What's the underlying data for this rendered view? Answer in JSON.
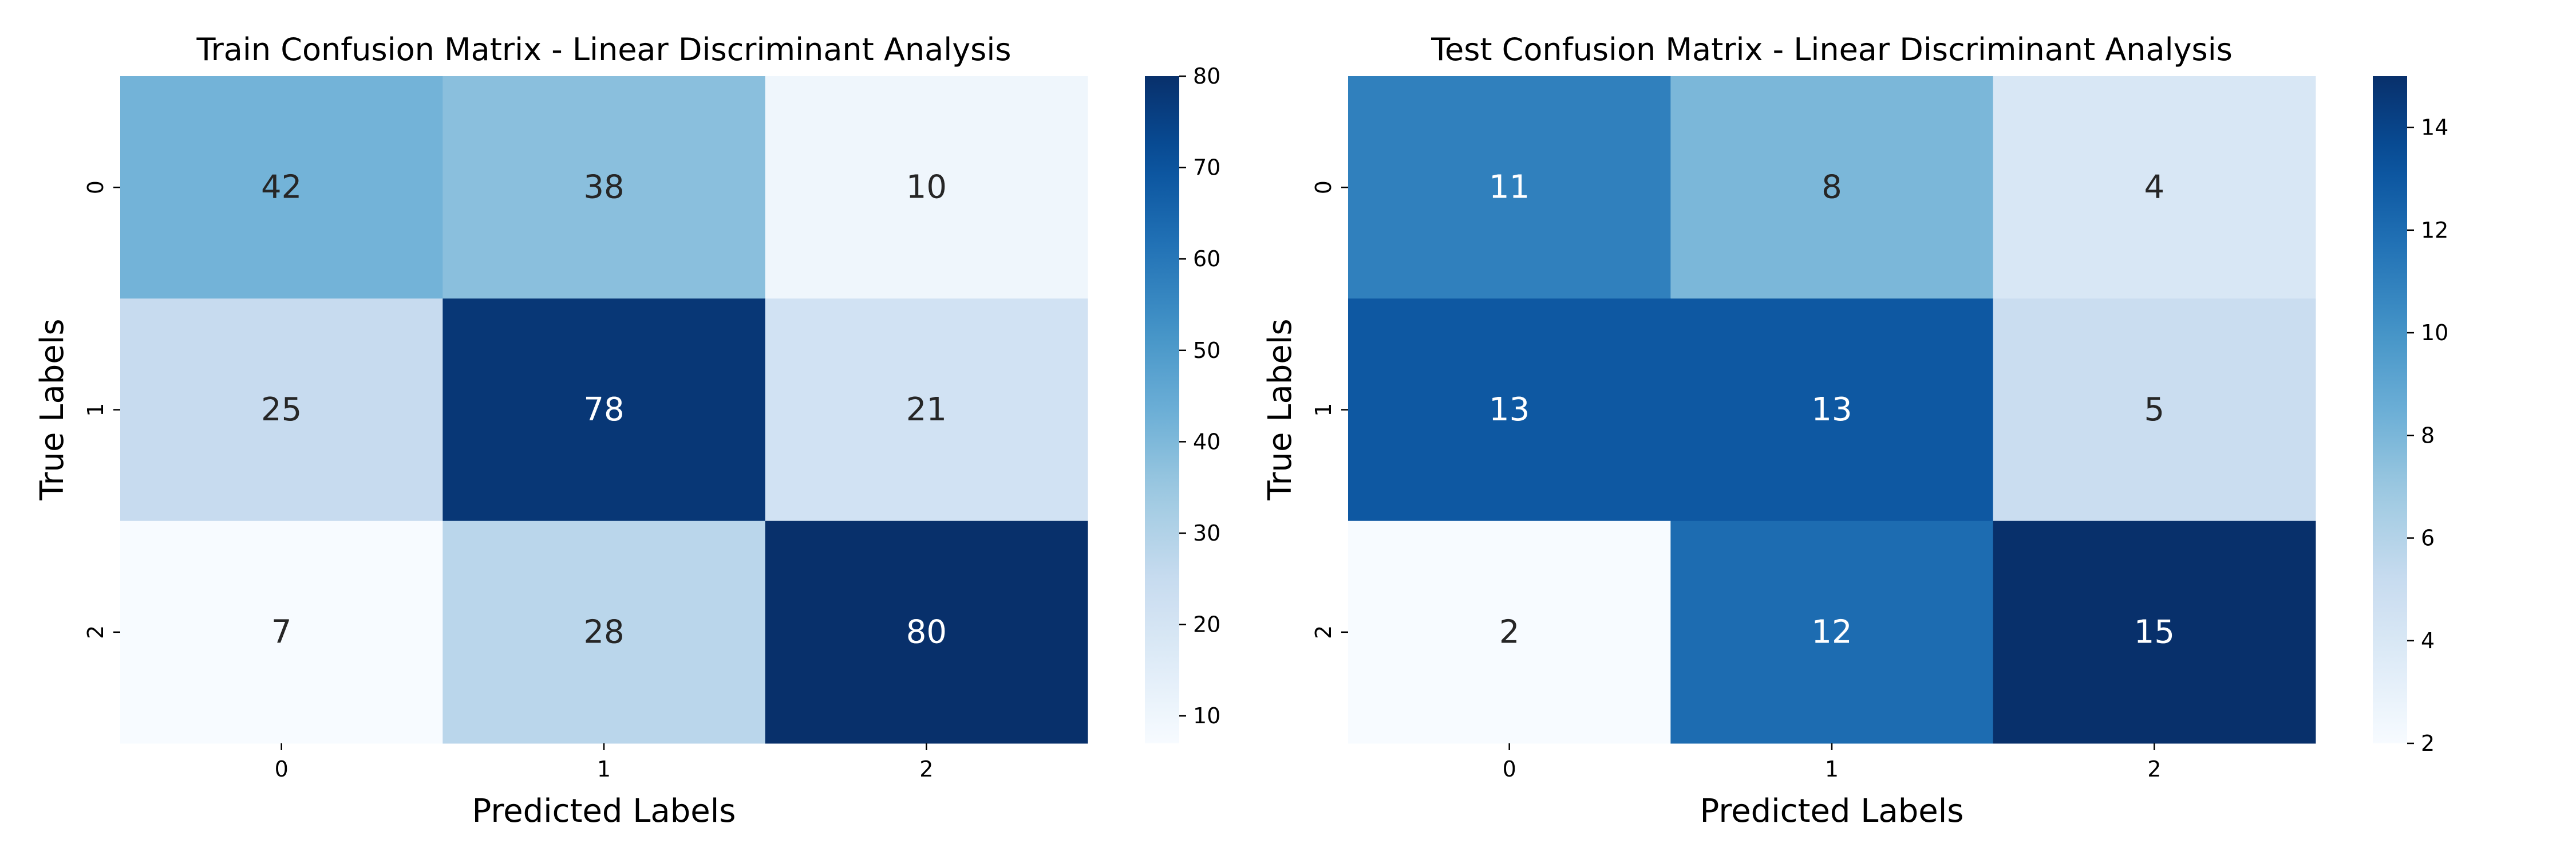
{
  "chart_data": [
    {
      "type": "heatmap",
      "title": "Train Confusion Matrix - Linear Discriminant Analysis",
      "xlabel": "Predicted Labels",
      "ylabel": "True Labels",
      "x_categories": [
        "0",
        "1",
        "2"
      ],
      "y_categories": [
        "0",
        "1",
        "2"
      ],
      "values": [
        [
          42,
          38,
          10
        ],
        [
          25,
          78,
          21
        ],
        [
          7,
          28,
          80
        ]
      ],
      "colormap": "Blues",
      "color_range": [
        7,
        80
      ],
      "colorbar_ticks": [
        10,
        20,
        30,
        40,
        50,
        60,
        70,
        80
      ]
    },
    {
      "type": "heatmap",
      "title": "Test Confusion Matrix - Linear Discriminant Analysis",
      "xlabel": "Predicted Labels",
      "ylabel": "True Labels",
      "x_categories": [
        "0",
        "1",
        "2"
      ],
      "y_categories": [
        "0",
        "1",
        "2"
      ],
      "values": [
        [
          11,
          8,
          4
        ],
        [
          13,
          13,
          5
        ],
        [
          2,
          12,
          15
        ]
      ],
      "colormap": "Blues",
      "color_range": [
        2,
        15
      ],
      "colorbar_ticks": [
        2,
        4,
        6,
        8,
        10,
        12,
        14
      ]
    }
  ]
}
